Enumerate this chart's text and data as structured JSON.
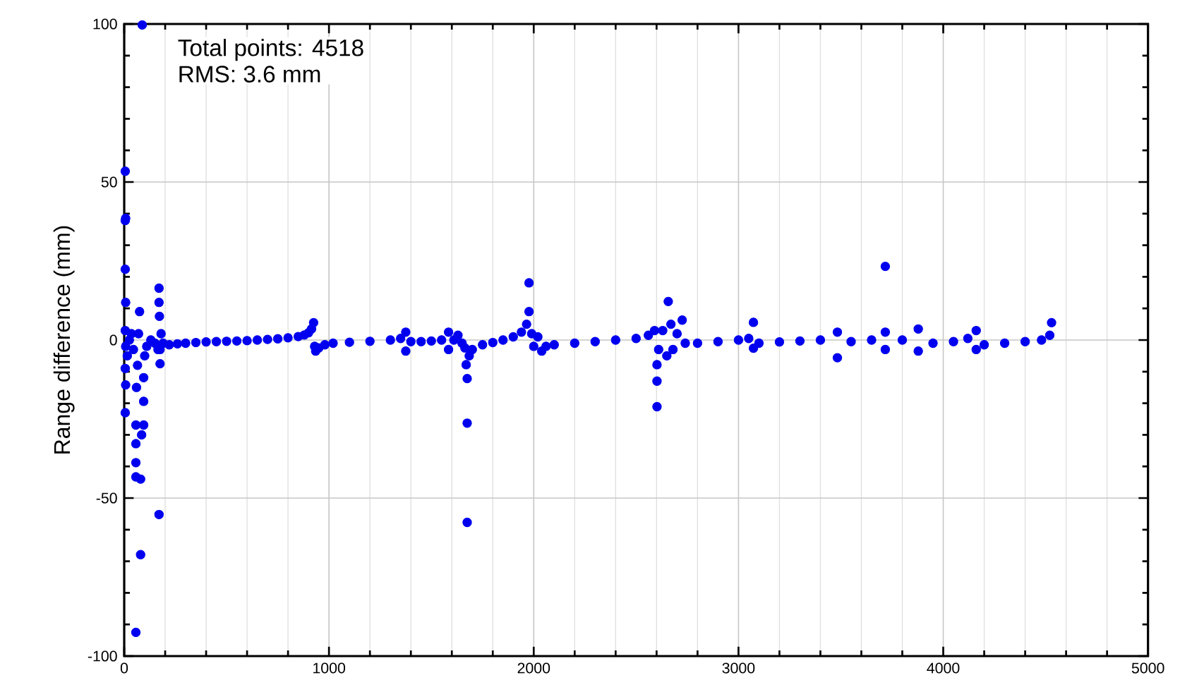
{
  "chart_data": {
    "type": "scatter",
    "ylabel": "Range difference (mm)",
    "annotations": [
      "Total points: 4518",
      "RMS: 3.6 mm"
    ],
    "xlim": [
      0,
      5000
    ],
    "ylim": [
      -100,
      100
    ],
    "xticks": [
      0,
      1000,
      2000,
      3000,
      4000,
      5000
    ],
    "yticks": [
      -100,
      -50,
      0,
      50,
      100
    ],
    "grid": true,
    "marker": "circle",
    "series": [
      {
        "color": "#0000ee",
        "x": [
          5,
          5,
          7,
          5,
          7,
          5,
          7,
          5,
          7,
          5,
          15,
          25,
          35,
          45,
          57,
          57,
          57,
          57,
          57,
          60,
          65,
          70,
          75,
          80,
          80,
          85,
          88,
          95,
          95,
          95,
          100,
          110,
          130,
          150,
          165,
          170,
          170,
          170,
          172,
          175,
          175,
          180,
          190,
          220,
          260,
          300,
          350,
          400,
          450,
          500,
          550,
          600,
          650,
          700,
          750,
          800,
          850,
          880,
          900,
          915,
          925,
          930,
          935,
          950,
          980,
          1020,
          1100,
          1200,
          1300,
          1350,
          1375,
          1375,
          1400,
          1450,
          1500,
          1550,
          1584,
          1584,
          1610,
          1630,
          1650,
          1664,
          1670,
          1675,
          1675,
          1675,
          1685,
          1700,
          1750,
          1800,
          1850,
          1900,
          1940,
          1965,
          1977,
          1977,
          1990,
          2000,
          2020,
          2039,
          2060,
          2100,
          2200,
          2300,
          2400,
          2500,
          2560,
          2590,
          2602,
          2602,
          2602,
          2610,
          2630,
          2650,
          2657,
          2670,
          2680,
          2700,
          2725,
          2740,
          2800,
          2900,
          3000,
          3050,
          3073,
          3073,
          3100,
          3200,
          3300,
          3400,
          3483,
          3483,
          3550,
          3650,
          3717,
          3717,
          3717,
          3800,
          3878,
          3878,
          3950,
          4050,
          4120,
          4161,
          4161,
          4200,
          4300,
          4400,
          4480,
          4520,
          4529
        ],
        "values": [
          53.4,
          37.8,
          38.5,
          22.4,
          11.9,
          3,
          -2,
          -9,
          -14.2,
          -23,
          -5,
          0,
          2,
          -3,
          -38.8,
          -43.3,
          -92.5,
          -32.8,
          -26.9,
          -15,
          -8,
          2,
          9,
          -44,
          -67.9,
          -30,
          99.7,
          -26.9,
          -19.4,
          -11.9,
          -5,
          -2,
          0,
          -1,
          -3,
          -55.2,
          16.4,
          11.9,
          7.5,
          -3,
          -7.5,
          2,
          -1,
          -1.5,
          -1.2,
          -1,
          -0.8,
          -0.6,
          -0.5,
          -0.4,
          -0.3,
          -0.2,
          0,
          0.2,
          0.4,
          0.7,
          1.1,
          1.6,
          2.3,
          3.5,
          5.5,
          -2,
          -3.5,
          -2.5,
          -1.5,
          -1,
          -0.7,
          -0.4,
          0,
          0.5,
          2.5,
          -3.5,
          -0.5,
          -0.5,
          -0.3,
          0,
          2.5,
          -3,
          0,
          1.5,
          -1,
          -2.5,
          -7.8,
          -12.2,
          -26.3,
          -57.7,
          -5,
          -3,
          -1.5,
          -0.8,
          0,
          1,
          2.5,
          5,
          9,
          18.1,
          2,
          -2,
          1,
          -3.5,
          -2,
          -1.5,
          -1,
          -0.5,
          0,
          0.5,
          1.5,
          3,
          -7.8,
          -13,
          -21.1,
          -3,
          3,
          -5,
          12.2,
          5,
          -3,
          2,
          6.3,
          -1,
          -1,
          -0.5,
          0,
          0.5,
          5.6,
          -2.6,
          -1,
          -0.6,
          -0.3,
          0,
          2.5,
          -5.6,
          -0.5,
          0,
          23.3,
          2.5,
          -3,
          0,
          3.5,
          -3.5,
          -1,
          -0.5,
          0.5,
          3,
          -3,
          -1.5,
          -1,
          -0.5,
          0,
          1.5,
          5.5
        ]
      }
    ]
  }
}
